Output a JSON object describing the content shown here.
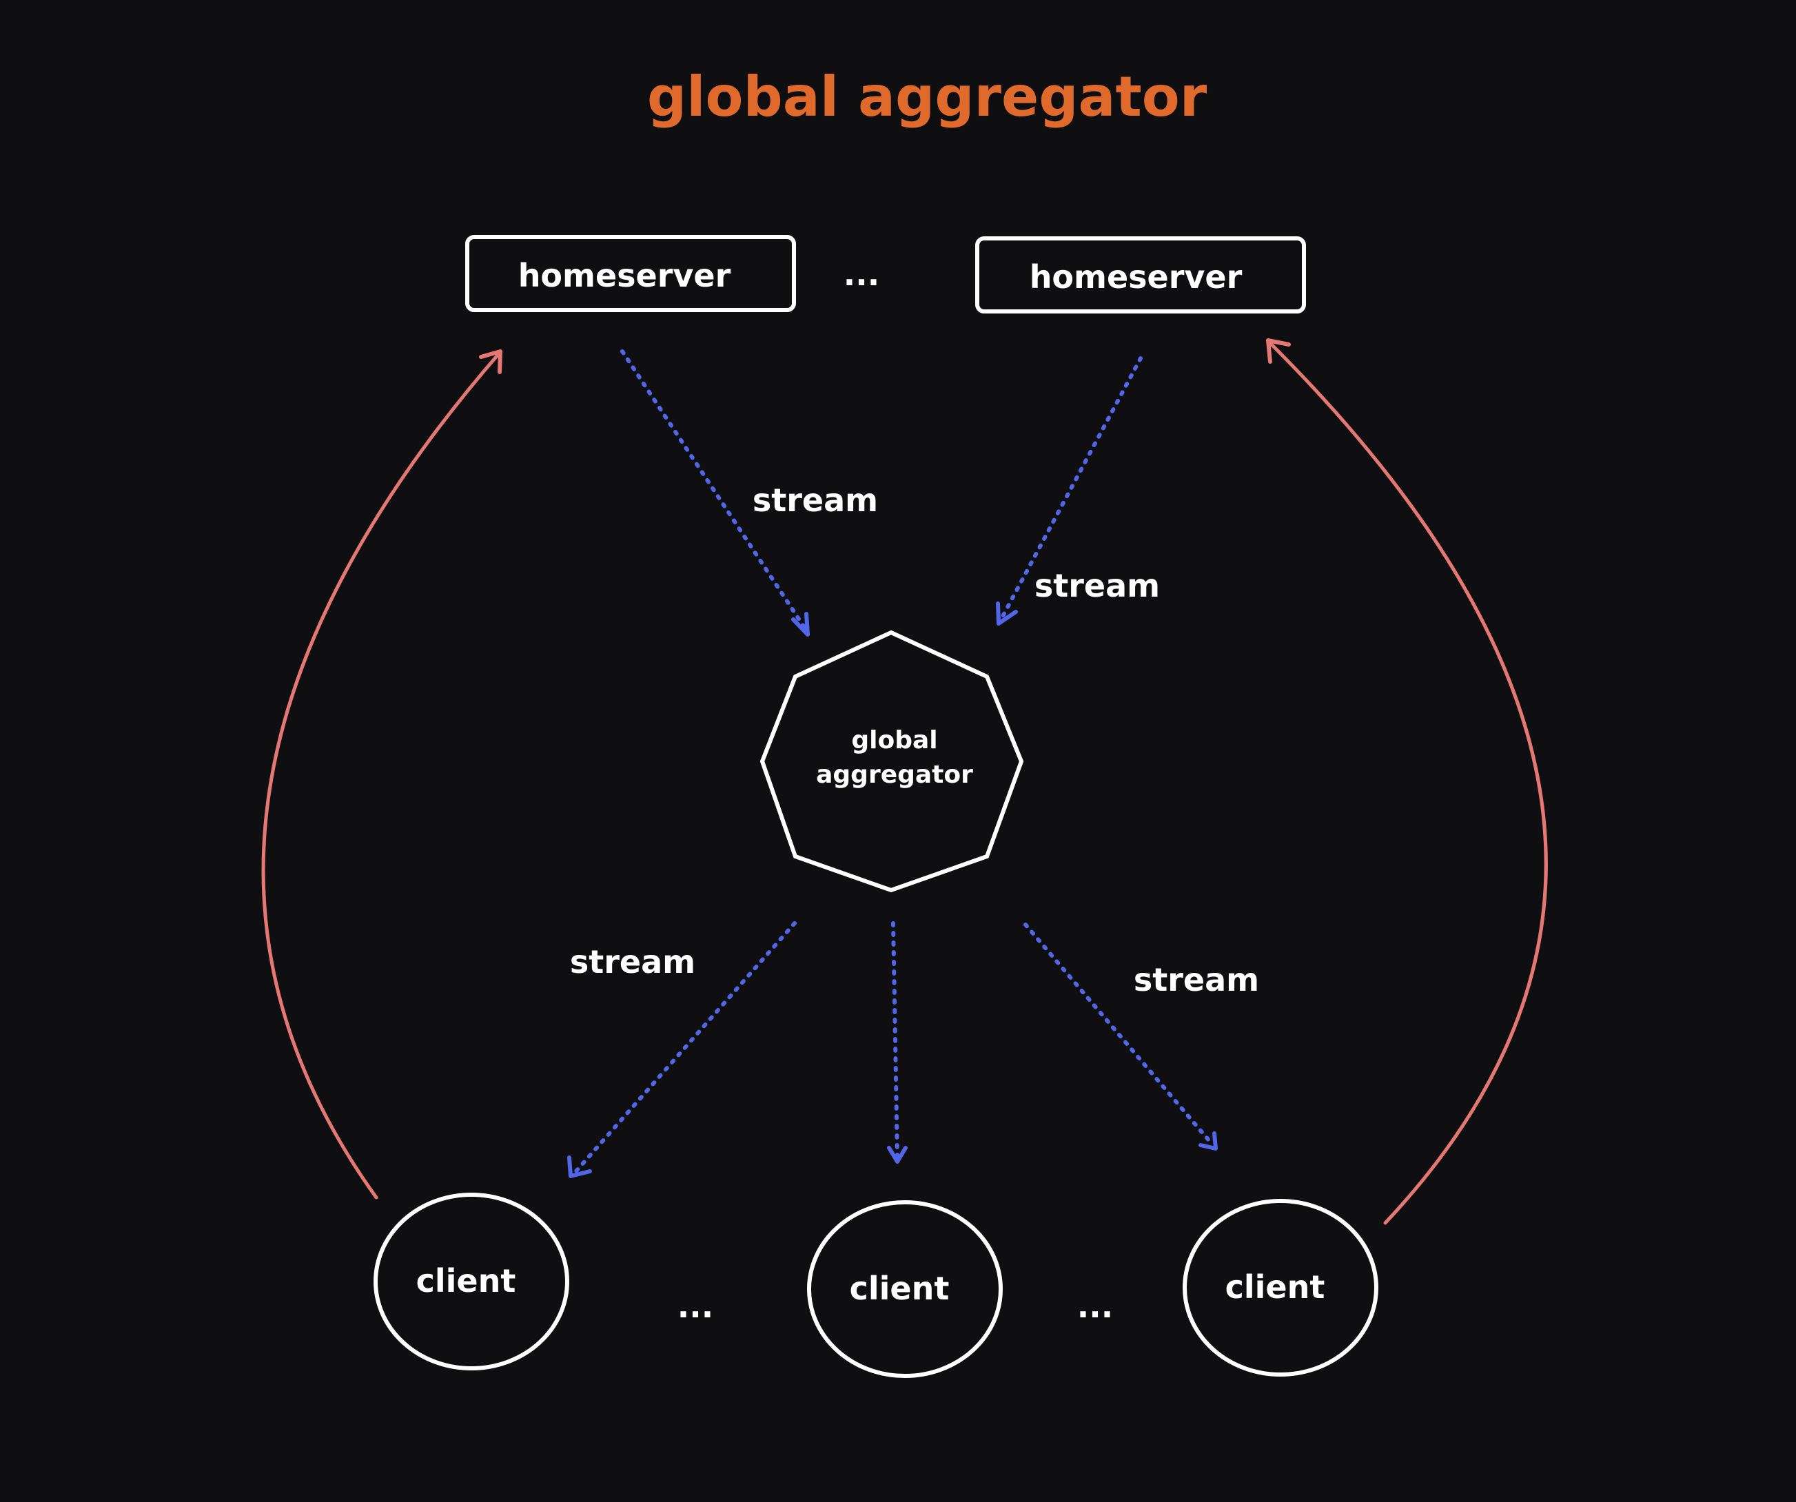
{
  "title": "global aggregator",
  "colors": {
    "background": "#0f0f11",
    "title": "#e06a2c",
    "node_stroke": "#ffffff",
    "stream": "#5166e8",
    "return": "#e57872"
  },
  "nodes": {
    "homeserver_left": "homeserver",
    "homeserver_right": "homeserver",
    "homeserver_ellipsis": "...",
    "aggregator_line1": "global",
    "aggregator_line2": "aggregator",
    "client_left": "client",
    "client_middle": "client",
    "client_right": "client",
    "client_ellipsis_left": "...",
    "client_ellipsis_right": "..."
  },
  "edges": {
    "stream_hs_left": "stream",
    "stream_hs_right": "stream",
    "stream_client_left": "stream",
    "stream_client_right": "stream"
  },
  "icons": {
    "homeserver": "rectangle",
    "aggregator": "heptagon",
    "client": "ellipse"
  }
}
